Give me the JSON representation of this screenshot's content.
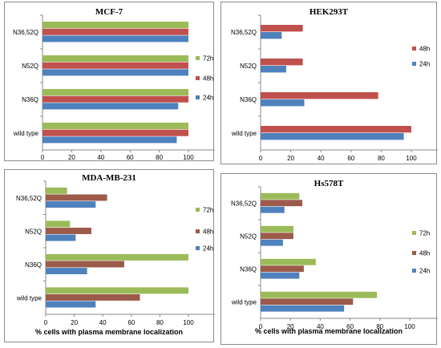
{
  "chart_data": [
    {
      "type": "bar",
      "orientation": "horizontal",
      "title": "MCF-7",
      "xlabel": "",
      "categories": [
        "N36,52Q",
        "N52Q",
        "N36Q",
        "wild type"
      ],
      "series": [
        {
          "name": "72h",
          "color": "#9bbb59",
          "values": [
            100,
            100,
            100,
            100
          ]
        },
        {
          "name": "48h",
          "color": "#c0504d",
          "values": [
            100,
            100,
            100,
            100
          ]
        },
        {
          "name": "24h",
          "color": "#4f81bd",
          "values": [
            100,
            100,
            93,
            92
          ]
        }
      ],
      "xlim": [
        0,
        120
      ],
      "xticks": [
        "0",
        "20",
        "40",
        "60",
        "80",
        "100"
      ],
      "legend": "right",
      "grid": false
    },
    {
      "type": "bar",
      "orientation": "horizontal",
      "title": "HEK293T",
      "xlabel": "",
      "categories": [
        "N36,52Q",
        "N52Q",
        "N36Q",
        "wild type"
      ],
      "series": [
        {
          "name": "48h",
          "color": "#c0504d",
          "values": [
            28,
            28,
            78,
            100
          ]
        },
        {
          "name": "24h",
          "color": "#4f81bd",
          "values": [
            14,
            17,
            29,
            95
          ]
        }
      ],
      "xlim": [
        0,
        120
      ],
      "xticks": [
        "0",
        "20",
        "40",
        "60",
        "80",
        "100"
      ],
      "legend": "right",
      "grid": false
    },
    {
      "type": "bar",
      "orientation": "horizontal",
      "title": "MDA-MB-231",
      "xlabel": "% cells with plasma membrane localization",
      "categories": [
        "N36,52Q",
        "N52Q",
        "N36Q",
        "wild type"
      ],
      "series": [
        {
          "name": "72h",
          "color": "#9bbb59",
          "values": [
            15,
            17,
            100,
            100
          ]
        },
        {
          "name": "48h",
          "color": "#9c5b4a",
          "values": [
            43,
            32,
            55,
            66
          ]
        },
        {
          "name": "24h",
          "color": "#4f81bd",
          "values": [
            35,
            21,
            29,
            35
          ]
        }
      ],
      "xlim": [
        0,
        120
      ],
      "xticks": [
        "0",
        "20",
        "40",
        "60",
        "80",
        "100"
      ],
      "legend": "right",
      "grid": false
    },
    {
      "type": "bar",
      "orientation": "horizontal",
      "title": "Hs578T",
      "xlabel": "% cells with plasma membrane localization",
      "categories": [
        "N36,52Q",
        "N52Q",
        "N36Q",
        "wild type"
      ],
      "series": [
        {
          "name": "72h",
          "color": "#9bbb59",
          "values": [
            26,
            22,
            37,
            78
          ]
        },
        {
          "name": "48h",
          "color": "#9c5b4a",
          "values": [
            28,
            22,
            29,
            62
          ]
        },
        {
          "name": "24h",
          "color": "#4f81bd",
          "values": [
            16,
            15,
            26,
            56
          ]
        }
      ],
      "xlim": [
        0,
        120
      ],
      "xticks": [
        "0",
        "20",
        "40",
        "60",
        "80",
        "100"
      ],
      "legend": "right",
      "grid": false
    }
  ]
}
